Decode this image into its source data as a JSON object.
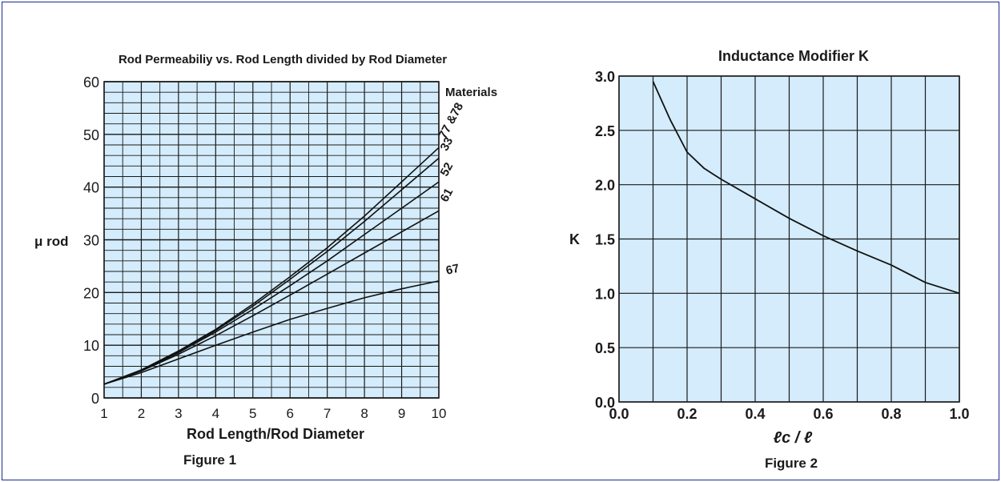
{
  "chart_data": [
    {
      "type": "line",
      "title": "Rod Permeabiliy vs. Rod Length divided by Rod Diameter",
      "xlabel": "Rod Length/Rod Diameter",
      "ylabel": "μ rod",
      "caption": "Figure 1",
      "legend_title": "Materials",
      "xlim": [
        1,
        10
      ],
      "ylim": [
        0,
        60
      ],
      "x_ticks": [
        "1",
        "2",
        "3",
        "4",
        "5",
        "6",
        "7",
        "8",
        "9",
        "10"
      ],
      "y_ticks": [
        "0",
        "10",
        "20",
        "30",
        "40",
        "50",
        "60"
      ],
      "x": [
        1,
        2,
        3,
        4,
        5,
        6,
        7,
        8,
        9,
        10
      ],
      "series": [
        {
          "name": "77 &78",
          "values": [
            2.6,
            5.3,
            8.9,
            13.0,
            17.8,
            23.0,
            28.5,
            34.5,
            41.0,
            47.5
          ]
        },
        {
          "name": "33",
          "values": [
            2.6,
            5.3,
            8.8,
            12.8,
            17.4,
            22.5,
            27.8,
            33.5,
            39.5,
            45.5
          ]
        },
        {
          "name": "52",
          "values": [
            2.6,
            5.2,
            8.6,
            12.5,
            16.8,
            21.3,
            26.0,
            31.0,
            36.0,
            41.0
          ]
        },
        {
          "name": "61",
          "values": [
            2.6,
            5.1,
            8.3,
            11.8,
            15.6,
            19.5,
            23.5,
            27.5,
            31.5,
            35.5
          ]
        },
        {
          "name": "67",
          "values": [
            2.6,
            4.8,
            7.4,
            10.0,
            12.5,
            14.9,
            17.0,
            19.0,
            20.7,
            22.2
          ]
        }
      ],
      "grid": true
    },
    {
      "type": "line",
      "title": "Inductance Modifier K",
      "xlabel": "ℓc / ℓ",
      "ylabel": "K",
      "caption": "Figure 2",
      "xlim": [
        0.0,
        1.0
      ],
      "ylim": [
        0.0,
        3.0
      ],
      "x_ticks": [
        "0.0",
        "0.2",
        "0.4",
        "0.6",
        "0.8",
        "1.0"
      ],
      "y_ticks": [
        "0.0",
        "0.5",
        "1.0",
        "1.5",
        "2.0",
        "2.5",
        "3.0"
      ],
      "x": [
        0.1,
        0.15,
        0.2,
        0.25,
        0.3,
        0.4,
        0.5,
        0.6,
        0.7,
        0.8,
        0.9,
        1.0
      ],
      "series": [
        {
          "values": [
            2.95,
            2.6,
            2.3,
            2.15,
            2.05,
            1.87,
            1.69,
            1.53,
            1.39,
            1.26,
            1.1,
            1.0
          ]
        }
      ],
      "grid": true
    }
  ],
  "colors": {
    "plot_bg": "#d4ecfb",
    "grid": "#1a1a1a",
    "curve": "#111111",
    "frame": "#1d2b8f"
  }
}
